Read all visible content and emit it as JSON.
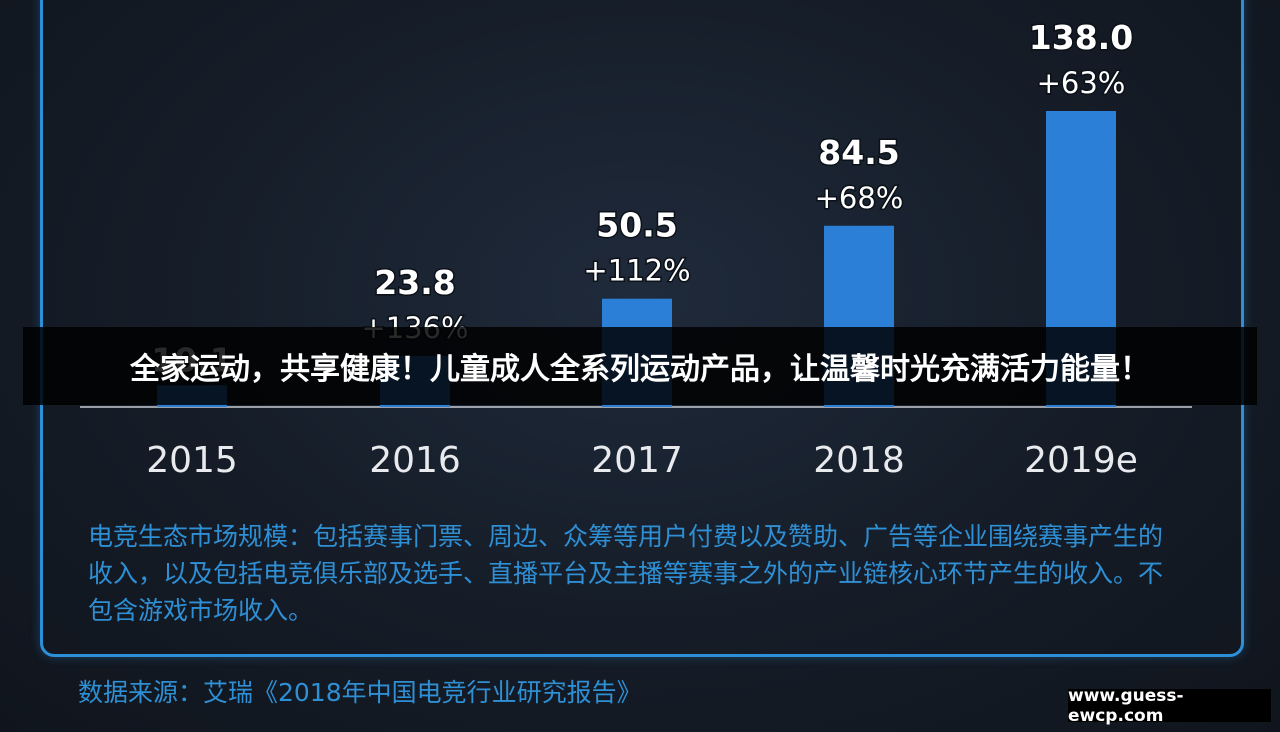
{
  "chart_data": {
    "type": "bar",
    "categories": [
      "2015",
      "2016",
      "2017",
      "2018",
      "2019e"
    ],
    "values": [
      10.1,
      23.8,
      50.5,
      84.5,
      138.0
    ],
    "value_labels": [
      "10.1",
      "23.8",
      "50.5",
      "84.5",
      "138.0"
    ],
    "growth_labels": [
      "",
      "+136%",
      "+112%",
      "+68%",
      "+63%"
    ],
    "ylim": [
      0,
      138.0
    ],
    "grid": false,
    "bar_color": "#2b7fd6"
  },
  "description": "电竞生态市场规模：包括赛事门票、周边、众筹等用户付费以及赞助、广告等企业围绕赛事产生的收入，以及包括电竞俱乐部及选手、直播平台及主播等赛事之外的产业链核心环节产生的收入。不包含游戏市场收入。",
  "source": "数据来源：艾瑞《2018年中国电竞行业研究报告》",
  "banner": "全家运动，共享健康！儿童成人全系列运动产品，让温馨时光充满活力能量！",
  "watermark": "www.guess-ewcp.com",
  "colors": {
    "accent": "#2d8fd8",
    "bar": "#2b7fd6",
    "text_blue": "#2f8fd4",
    "background": "#151c27"
  }
}
